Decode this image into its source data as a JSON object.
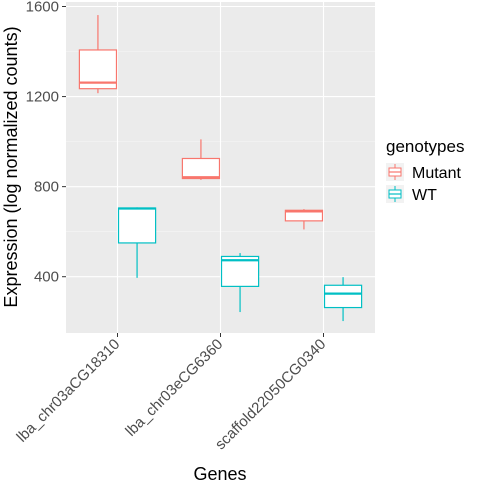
{
  "chart_data": {
    "type": "boxplot",
    "xlabel": "Genes",
    "ylabel": "Expression (log normalized counts)",
    "categories": [
      "lba_chr03aCG18310",
      "lba_chr03eCG6360",
      "scaffold22050CG0340"
    ],
    "yticks": [
      400,
      800,
      1200,
      1600
    ],
    "ylim": [
      150,
      1620
    ],
    "grid": true,
    "legend": {
      "title": "genotypes",
      "placement": "right"
    },
    "series": [
      {
        "name": "Mutant",
        "color": "#f8766d",
        "boxes": [
          {
            "min": 1215,
            "q1": 1235,
            "median": 1262,
            "q3": 1407,
            "max": 1562
          },
          {
            "min": 830,
            "q1": 836,
            "median": 842,
            "q3": 925,
            "max": 1010
          },
          {
            "min": 610,
            "q1": 648,
            "median": 690,
            "q3": 695,
            "max": 700
          }
        ]
      },
      {
        "name": "WT",
        "color": "#00bfc4",
        "boxes": [
          {
            "min": 395,
            "q1": 550,
            "median": 703,
            "q3": 705,
            "max": 708
          },
          {
            "min": 243,
            "q1": 357,
            "median": 473,
            "q3": 490,
            "max": 505
          },
          {
            "min": 203,
            "q1": 263,
            "median": 325,
            "q3": 362,
            "max": 398
          }
        ]
      }
    ]
  }
}
